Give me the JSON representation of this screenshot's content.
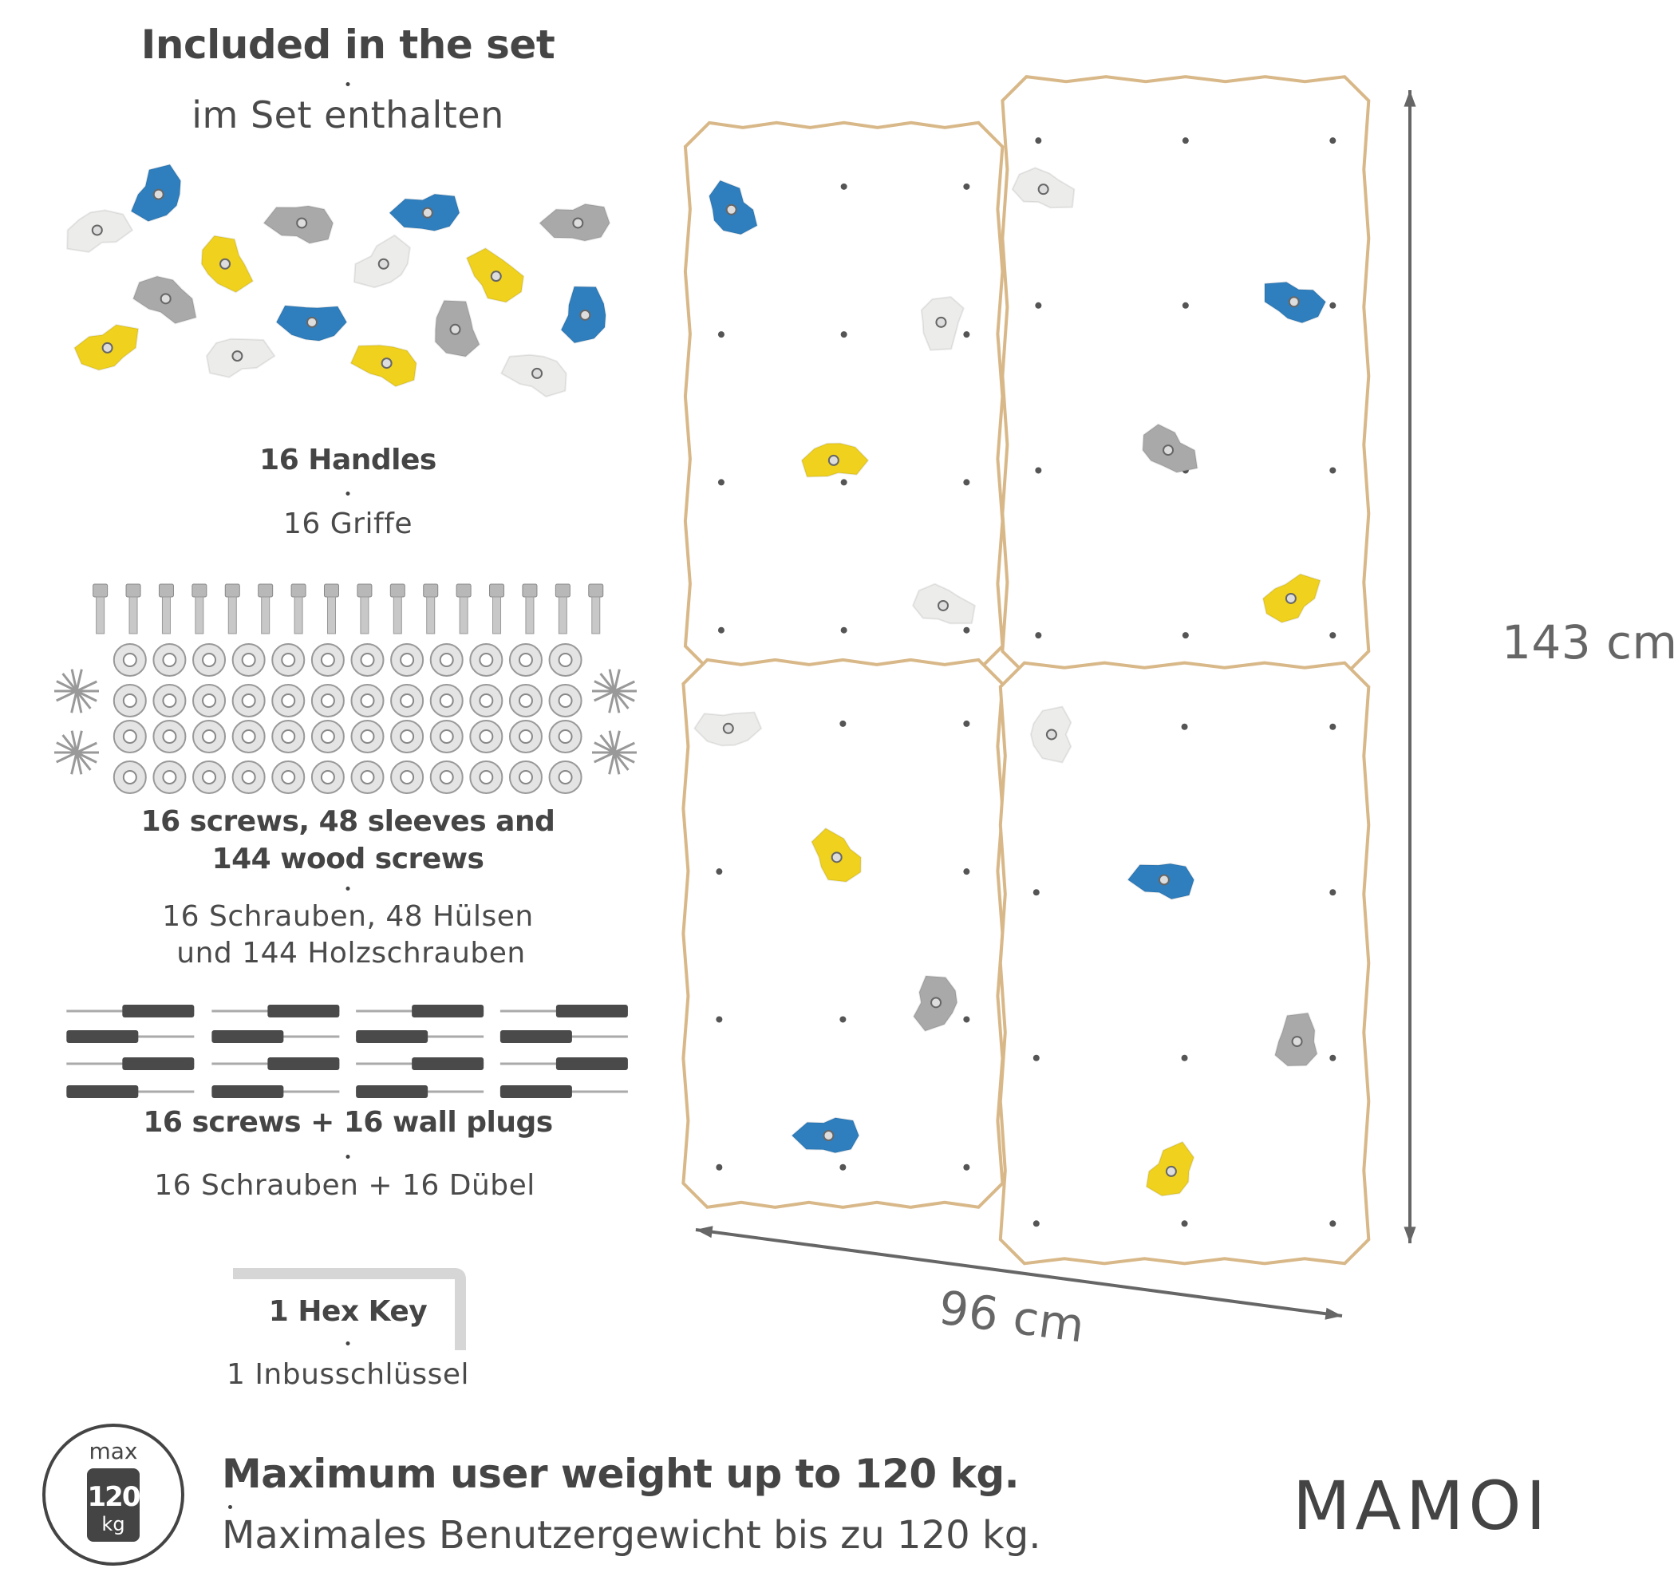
{
  "header": {
    "title_en": "Included in the set",
    "title_de": "im Set enthalten"
  },
  "items": [
    {
      "en": "16 Handles",
      "de": "16 Griffe"
    },
    {
      "en_line1": "16 screws, 48 sleeves and",
      "en_line2": "144 wood screws",
      "de_line1": "16 Schrauben, 48 Hülsen",
      "de_line2": "und 144 Holzschrauben"
    },
    {
      "en": "16 screws + 16 wall plugs",
      "de": "16 Schrauben + 16 Dübel"
    },
    {
      "en": "1 Hex Key",
      "de": "1 Inbusschlüssel"
    }
  ],
  "dimensions": {
    "height": "143 cm",
    "width": "96 cm"
  },
  "weight_badge": {
    "top": "max",
    "value": "120",
    "unit": "kg"
  },
  "footer": {
    "en": "Maximum user weight up to 120 kg.",
    "de": "Maximales Benutzergewicht bis zu 120 kg."
  },
  "brand": {
    "logo_text": "MAMOI"
  },
  "colors": {
    "text": "#454545",
    "blue": "#2f7fbf",
    "yellow": "#f0d21e",
    "grey": "#a9a9a9",
    "white_hold": "#ececea",
    "plywood": "#d8b888"
  }
}
